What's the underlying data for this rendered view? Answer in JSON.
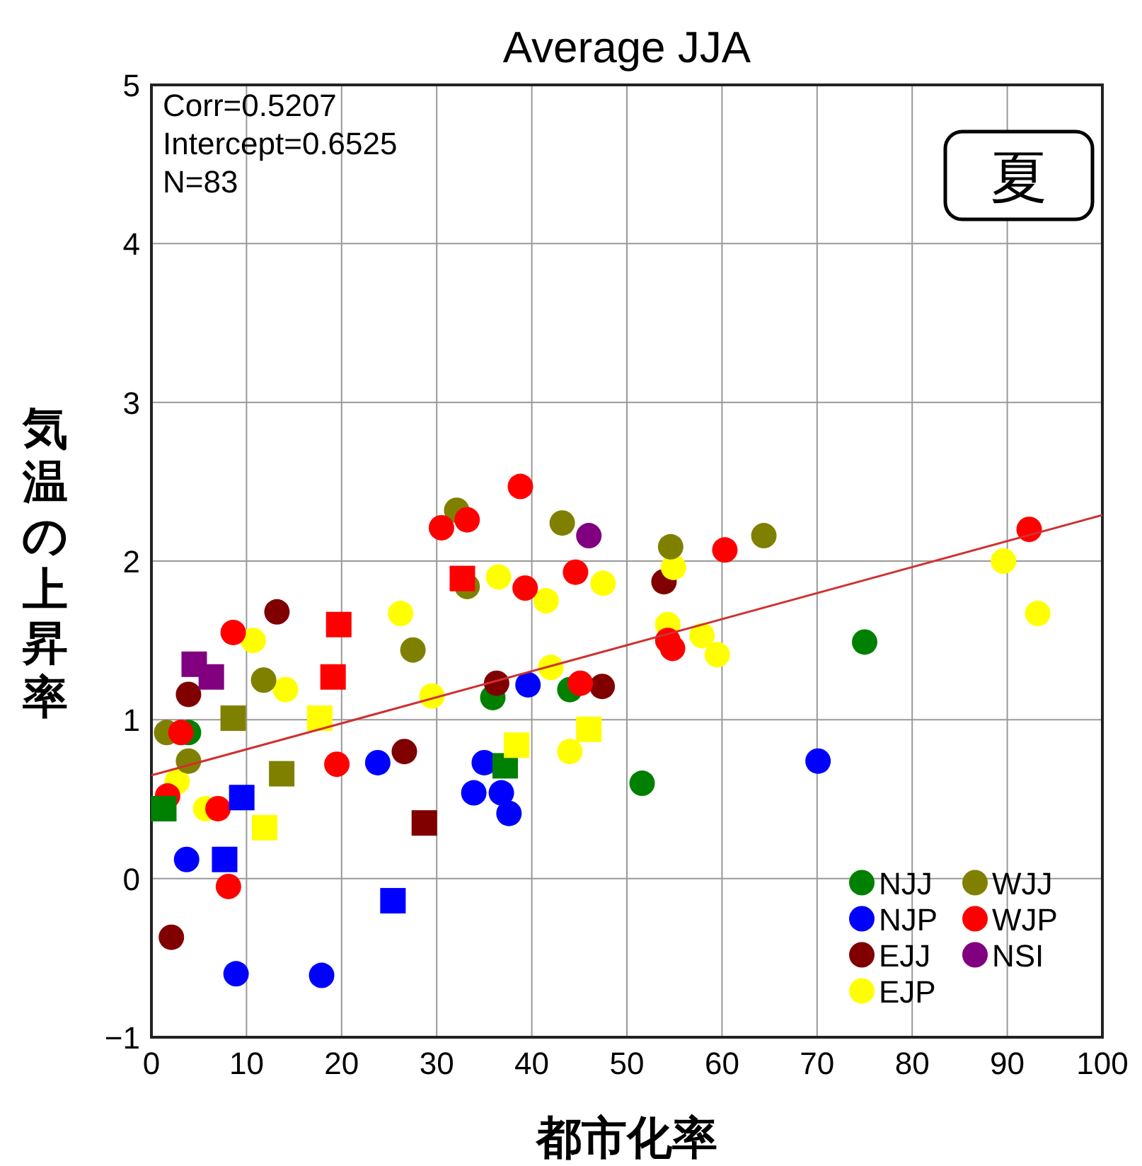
{
  "chart_data": {
    "type": "scatter",
    "title": "Average JJA",
    "xlabel": "都市化率",
    "ylabel": "気温の上昇率",
    "annotations": [
      "Corr=0.5207",
      "Intercept=0.6525",
      "N=83",
      "夏"
    ],
    "xlim": [
      0,
      100
    ],
    "ylim": [
      -1,
      5
    ],
    "xticks": [
      0,
      10,
      20,
      30,
      40,
      50,
      60,
      70,
      80,
      90,
      100
    ],
    "yticks": [
      -1,
      0,
      1,
      2,
      3,
      4,
      5
    ],
    "grid": true,
    "legend": "bottom right",
    "series": [
      {
        "name": "NJJ",
        "color": "#008000",
        "marker": "circle",
        "x": [
          3.9,
          35.9,
          44.0,
          51.6,
          75.0
        ],
        "values": [
          0.92,
          1.14,
          1.19,
          0.6,
          1.49
        ]
      },
      {
        "name": "NJP",
        "color": "#0000ff",
        "marker": "circle",
        "x": [
          3.7,
          8.9,
          17.9,
          23.8,
          35.0,
          33.9,
          36.8,
          37.6,
          39.6,
          70.1
        ],
        "values": [
          0.12,
          -0.6,
          -0.61,
          0.73,
          0.73,
          0.54,
          0.54,
          0.41,
          1.22,
          0.74
        ]
      },
      {
        "name": "EJJ",
        "color": "#800000",
        "marker": "circle",
        "x": [
          2.1,
          3.9,
          13.2,
          26.6,
          36.3,
          47.4,
          53.9
        ],
        "values": [
          -0.37,
          1.16,
          1.68,
          0.8,
          1.23,
          1.21,
          1.87
        ]
      },
      {
        "name": "EJP",
        "color": "#ffff00",
        "marker": "circle",
        "x": [
          2.7,
          5.7,
          10.7,
          14.1,
          26.2,
          29.5,
          36.5,
          41.5,
          42.0,
          44.0,
          47.5,
          54.9,
          54.3,
          57.9,
          59.5,
          89.6,
          93.2
        ],
        "values": [
          0.61,
          0.44,
          1.5,
          1.19,
          1.67,
          1.15,
          1.9,
          1.75,
          1.33,
          0.8,
          1.86,
          1.96,
          1.6,
          1.53,
          1.41,
          2.0,
          1.67
        ]
      },
      {
        "name": "WJJ",
        "color": "#808000",
        "marker": "circle",
        "x": [
          1.6,
          3.9,
          11.8,
          27.5,
          32.1,
          33.2,
          43.2,
          54.6,
          64.4
        ],
        "values": [
          0.92,
          0.74,
          1.25,
          1.44,
          2.32,
          1.84,
          2.24,
          2.09,
          2.16
        ]
      },
      {
        "name": "WJP",
        "color": "#ff0000",
        "marker": "circle",
        "x": [
          3.1,
          1.7,
          7.0,
          8.1,
          8.6,
          19.5,
          30.5,
          33.2,
          38.8,
          39.3,
          44.6,
          45.1,
          54.3,
          54.8,
          60.3,
          92.3
        ],
        "values": [
          0.92,
          0.52,
          0.44,
          -0.05,
          1.55,
          0.72,
          2.21,
          2.26,
          2.47,
          1.83,
          1.93,
          1.23,
          1.5,
          1.45,
          2.07,
          2.2
        ]
      },
      {
        "name": "NSI",
        "color": "#800080",
        "marker": "circle",
        "x": [
          46.0
        ],
        "values": [
          2.16
        ]
      },
      {
        "color": "#008000",
        "marker": "square",
        "x": [
          1.3,
          37.2
        ],
        "values": [
          0.44,
          0.71
        ]
      },
      {
        "color": "#0000ff",
        "marker": "square",
        "x": [
          7.7,
          9.5,
          25.4
        ],
        "values": [
          0.12,
          0.51,
          -0.14
        ]
      },
      {
        "color": "#800000",
        "marker": "square",
        "x": [
          28.7
        ],
        "values": [
          0.35
        ]
      },
      {
        "color": "#ffff00",
        "marker": "square",
        "x": [
          11.9,
          17.7,
          38.4,
          46.0
        ],
        "values": [
          0.32,
          1.01,
          0.84,
          0.94
        ]
      },
      {
        "color": "#808000",
        "marker": "square",
        "x": [
          8.6,
          13.7
        ],
        "values": [
          1.01,
          0.66
        ]
      },
      {
        "color": "#ff0000",
        "marker": "square",
        "x": [
          19.7,
          19.1,
          32.7
        ],
        "values": [
          1.6,
          1.27,
          1.89
        ]
      },
      {
        "color": "#800080",
        "marker": "square",
        "x": [
          4.5,
          6.3
        ],
        "values": [
          1.35,
          1.27
        ]
      },
      {
        "type": "line",
        "color": "#d03030",
        "marker": "none",
        "x": [
          0,
          100
        ],
        "values": [
          0.65,
          2.29
        ]
      }
    ]
  }
}
